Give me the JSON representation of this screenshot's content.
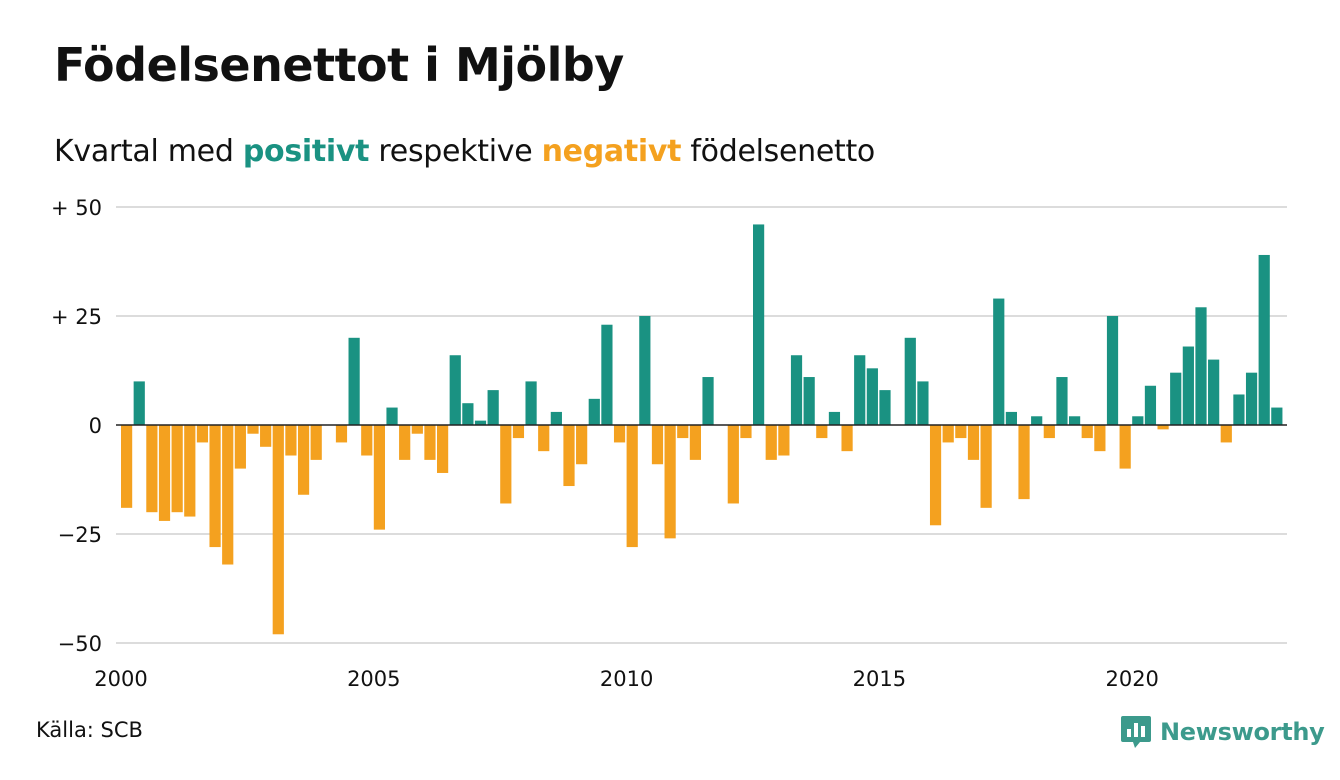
{
  "header": {
    "title": "Födelsenettot i Mjölby",
    "subtitle_parts": [
      "Kvartal med ",
      "positivt",
      " respektive ",
      "negativt",
      " födelsenetto"
    ]
  },
  "colors": {
    "positive": "#1a9282",
    "negative": "#f4a11f",
    "grid": "#dcdcdc",
    "zero_line": "#222222",
    "text": "#111111"
  },
  "footer": {
    "source": "Källa: SCB",
    "brand": "Newsworthy",
    "brand_icon": "newsworthy-logo-icon"
  },
  "chart_data": {
    "type": "bar",
    "title": "Födelsenettot i Mjölby",
    "subtitle": "Kvartal med positivt respektive negativt födelsenetto",
    "xlabel": "",
    "ylabel": "",
    "ylim": [
      -50,
      50
    ],
    "yticks": [
      50,
      25,
      0,
      -25,
      -50
    ],
    "ytick_labels": [
      "+ 50",
      "+ 25",
      "0",
      "−25",
      "−50"
    ],
    "xticks": [
      2000,
      2005,
      2010,
      2015,
      2020
    ],
    "xtick_labels": [
      "2000",
      "2005",
      "2010",
      "2015",
      "2020"
    ],
    "x_start": 2000,
    "periods_per_year": 4,
    "grid": true,
    "legend": "none",
    "values": [
      -19,
      10,
      -20,
      -22,
      -20,
      -21,
      -4,
      -28,
      -32,
      -10,
      -2,
      -5,
      -48,
      -7,
      -16,
      -8,
      0,
      -4,
      20,
      -7,
      -24,
      4,
      -8,
      -2,
      -8,
      -11,
      16,
      5,
      1,
      8,
      -18,
      -3,
      10,
      -6,
      3,
      -14,
      -9,
      6,
      23,
      -4,
      -28,
      25,
      -9,
      -26,
      -3,
      -8,
      11,
      0,
      -18,
      -3,
      46,
      -8,
      -7,
      16,
      11,
      -3,
      3,
      -6,
      16,
      13,
      8,
      0,
      20,
      10,
      -23,
      -4,
      -3,
      -8,
      -19,
      29,
      3,
      -17,
      2,
      -3,
      11,
      2,
      -3,
      -6,
      25,
      -10,
      2,
      9,
      -1,
      12,
      18,
      27,
      15,
      -4,
      7,
      12,
      39,
      4
    ]
  }
}
